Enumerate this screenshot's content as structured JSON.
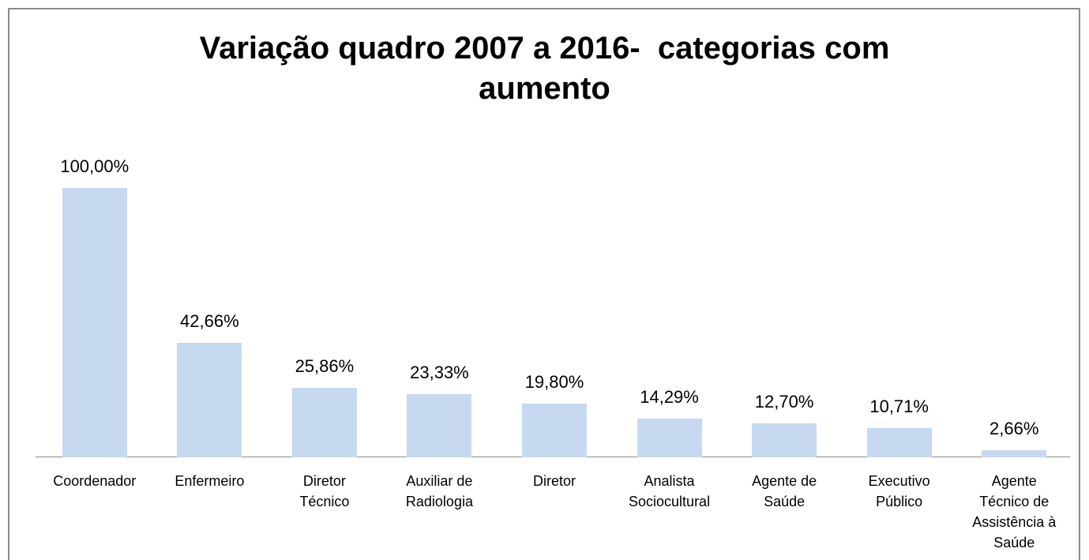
{
  "chart_data": {
    "type": "bar",
    "title": "Variação quadro 2007 a 2016-  categorias com aumento",
    "categories": [
      "Coordenador",
      "Enfermeiro",
      "Diretor Técnico",
      "Auxiliar de Radiologia",
      "Diretor",
      "Analista Sociocultural",
      "Agente de Saúde",
      "Executivo Público",
      "Agente Técnico de Assistência à Saúde"
    ],
    "values": [
      100,
      42.66,
      25.86,
      23.33,
      19.8,
      14.29,
      12.7,
      10.71,
      2.66
    ],
    "value_labels": [
      "100,00%",
      "42,66%",
      "25,86%",
      "23,33%",
      "19,80%",
      "14,29%",
      "12,70%",
      "10,71%",
      "2,66%"
    ],
    "color": "#c6d9f1"
  }
}
